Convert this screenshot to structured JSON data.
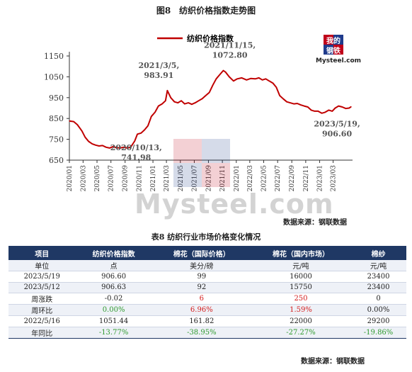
{
  "figure_title": "图8　纺织价格指数走势图",
  "source_label": "数据来源：钢联数据",
  "logo": {
    "text_top": "我的",
    "text_mid": "钢铁",
    "text_brand": "Mysteel.com"
  },
  "watermark": {
    "text": "Mysteel.com"
  },
  "chart_data": {
    "type": "line",
    "series": [
      {
        "name": "纺织价格指数",
        "color": "#c00000",
        "x": [
          "2020-01-01",
          "2020-01-20",
          "2020-02-05",
          "2020-02-25",
          "2020-03-10",
          "2020-03-25",
          "2020-04-10",
          "2020-04-25",
          "2020-05-10",
          "2020-05-25",
          "2020-06-10",
          "2020-06-25",
          "2020-07-10",
          "2020-07-25",
          "2020-08-10",
          "2020-08-25",
          "2020-09-10",
          "2020-09-25",
          "2020-10-13",
          "2020-10-25",
          "2020-11-10",
          "2020-11-25",
          "2020-12-10",
          "2020-12-25",
          "2021-01-10",
          "2021-01-25",
          "2021-02-10",
          "2021-02-25",
          "2021-03-05",
          "2021-03-20",
          "2021-04-05",
          "2021-04-20",
          "2021-05-05",
          "2021-05-20",
          "2021-06-05",
          "2021-06-20",
          "2021-07-05",
          "2021-07-20",
          "2021-08-05",
          "2021-08-20",
          "2021-09-05",
          "2021-09-20",
          "2021-10-05",
          "2021-10-20",
          "2021-11-05",
          "2021-11-15",
          "2021-12-01",
          "2021-12-20",
          "2022-01-05",
          "2022-01-25",
          "2022-02-15",
          "2022-03-05",
          "2022-03-25",
          "2022-04-10",
          "2022-04-25",
          "2022-05-10",
          "2022-05-25",
          "2022-06-10",
          "2022-06-25",
          "2022-07-10",
          "2022-07-25",
          "2022-08-10",
          "2022-08-25",
          "2022-09-10",
          "2022-09-25",
          "2022-10-10",
          "2022-10-25",
          "2022-11-10",
          "2022-11-25",
          "2022-12-10",
          "2022-12-25",
          "2023-01-10",
          "2023-01-25",
          "2023-02-10",
          "2023-02-25",
          "2023-03-10",
          "2023-03-25",
          "2023-04-10",
          "2023-04-25",
          "2023-05-10",
          "2023-05-19"
        ],
        "values": [
          838,
          835,
          820,
          790,
          760,
          740,
          728,
          722,
          718,
          720,
          712,
          708,
          715,
          710,
          708,
          712,
          708,
          712,
          741.98,
          775,
          780,
          795,
          815,
          860,
          880,
          910,
          920,
          935,
          983.91,
          950,
          930,
          925,
          935,
          920,
          925,
          918,
          925,
          935,
          945,
          960,
          975,
          1010,
          1040,
          1060,
          1080,
          1072.8,
          1050,
          1030,
          1040,
          1045,
          1035,
          1042,
          1040,
          1045,
          1035,
          1040,
          1030,
          1020,
          1000,
          960,
          945,
          930,
          925,
          920,
          922,
          915,
          910,
          905,
          890,
          885,
          885,
          875,
          880,
          890,
          885,
          900,
          910,
          905,
          898,
          900,
          906.6
        ]
      }
    ],
    "x_ticks": [
      "2020/01",
      "2020/03",
      "2020/05",
      "2020/07",
      "2020/09",
      "2020/11",
      "2021/01",
      "2021/03",
      "2021/05",
      "2021/07",
      "2021/09",
      "2021/11",
      "2022/01",
      "2022/03",
      "2022/05",
      "2022/07",
      "2022/09",
      "2022/11",
      "2023/01",
      "2023/03"
    ],
    "y_ticks": [
      650,
      750,
      850,
      950,
      1050,
      1150
    ],
    "ylim": [
      650,
      1150
    ],
    "xlim": [
      "2020-01-01",
      "2023-05-25"
    ],
    "grid": false,
    "legend": "top-left",
    "annotations": [
      {
        "date": "2021-03-05",
        "value": 983.91,
        "line1": "2021/3/5,",
        "line2": "983.91"
      },
      {
        "date": "2021-11-15",
        "value": 1072.8,
        "line1": "2021/11/15,",
        "line2": "1072.80"
      },
      {
        "date": "2020-10-13",
        "value": 741.98,
        "line1": "2020/10/13,",
        "line2": "741.98"
      },
      {
        "date": "2023-05-19",
        "value": 906.6,
        "line1": "2023/5/19,",
        "line2": "906.60"
      }
    ]
  },
  "table": {
    "title": "表8 纺织行业市场价格变化情况",
    "headers": [
      "项目",
      "纺织价格指数",
      "棉花（国际价格）",
      "棉花（国内市场）",
      "棉纱"
    ],
    "rows": [
      [
        "单位",
        "点",
        "美分/磅",
        "元/吨",
        "元/吨"
      ],
      [
        "2023/5/19",
        "906.60",
        "99",
        "16000",
        "23400"
      ],
      [
        "2023/5/12",
        "906.63",
        "92",
        "15750",
        "23400"
      ],
      [
        "周涨跌",
        "-0.02",
        "6",
        "250",
        "0"
      ],
      [
        "周环比",
        "0.00%",
        "6.96%",
        "1.59%",
        "0.00%"
      ],
      [
        "2022/5/16",
        "1051.44",
        "161.82",
        "22000",
        "29200"
      ],
      [
        "年同比",
        "-13.77%",
        "-38.95%",
        "-27.27%",
        "-19.86%"
      ]
    ],
    "colors": {
      "3-2": "#d41c1c",
      "3-3": "#d41c1c",
      "4-1": "#2e9a2e",
      "4-2": "#d41c1c",
      "4-3": "#d41c1c",
      "6-1": "#2e9a2e",
      "6-2": "#2e9a2e",
      "6-3": "#2e9a2e",
      "6-4": "#2e9a2e"
    }
  }
}
